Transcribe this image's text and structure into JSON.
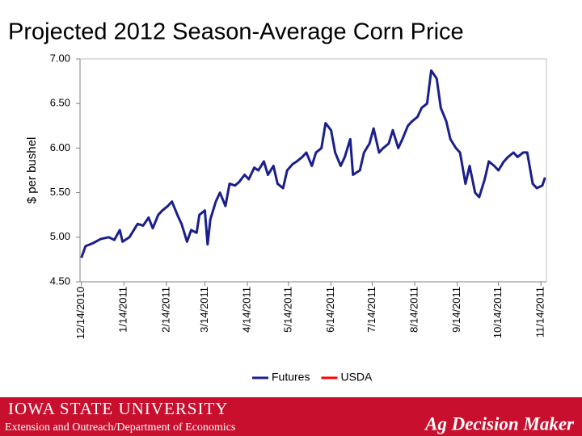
{
  "chart_data": {
    "type": "line",
    "title": "Projected 2012 Season-Average Corn Price",
    "y_label": "$ per bushel",
    "ylim": [
      4.5,
      7.0
    ],
    "yticks": [
      {
        "value": 4.5,
        "label": "4.50"
      },
      {
        "value": 5.0,
        "label": "5.00"
      },
      {
        "value": 5.5,
        "label": "5.50"
      },
      {
        "value": 6.0,
        "label": "6.00"
      },
      {
        "value": 6.5,
        "label": "6.50"
      },
      {
        "value": 7.0,
        "label": "7.00"
      }
    ],
    "xlim": [
      "2010-12-13",
      "2011-11-18"
    ],
    "xticks": [
      {
        "value": "2010-12-14",
        "label": "12/14/2010"
      },
      {
        "value": "2011-01-14",
        "label": "1/14/2011"
      },
      {
        "value": "2011-02-14",
        "label": "2/14/2011"
      },
      {
        "value": "2011-03-14",
        "label": "3/14/2011"
      },
      {
        "value": "2011-04-14",
        "label": "4/14/2011"
      },
      {
        "value": "2011-05-14",
        "label": "5/14/2011"
      },
      {
        "value": "2011-06-14",
        "label": "6/14/2011"
      },
      {
        "value": "2011-07-14",
        "label": "7/14/2011"
      },
      {
        "value": "2011-08-14",
        "label": "8/14/2011"
      },
      {
        "value": "2011-09-14",
        "label": "9/14/2011"
      },
      {
        "value": "2011-10-14",
        "label": "10/14/2011"
      },
      {
        "value": "2011-11-14",
        "label": "11/14/2011"
      }
    ],
    "x": [
      "2010-12-14",
      "2010-12-17",
      "2010-12-22",
      "2010-12-28",
      "2011-01-03",
      "2011-01-07",
      "2011-01-11",
      "2011-01-13",
      "2011-01-18",
      "2011-01-24",
      "2011-01-28",
      "2011-02-01",
      "2011-02-04",
      "2011-02-08",
      "2011-02-11",
      "2011-02-15",
      "2011-02-18",
      "2011-02-22",
      "2011-02-25",
      "2011-03-01",
      "2011-03-04",
      "2011-03-08",
      "2011-03-10",
      "2011-03-14",
      "2011-03-16",
      "2011-03-18",
      "2011-03-22",
      "2011-03-25",
      "2011-03-29",
      "2011-04-01",
      "2011-04-05",
      "2011-04-08",
      "2011-04-12",
      "2011-04-15",
      "2011-04-19",
      "2011-04-22",
      "2011-04-26",
      "2011-04-29",
      "2011-05-03",
      "2011-05-06",
      "2011-05-10",
      "2011-05-13",
      "2011-05-17",
      "2011-05-20",
      "2011-05-24",
      "2011-05-27",
      "2011-05-31",
      "2011-06-03",
      "2011-06-07",
      "2011-06-10",
      "2011-06-14",
      "2011-06-17",
      "2011-06-21",
      "2011-06-24",
      "2011-06-28",
      "2011-06-30",
      "2011-07-05",
      "2011-07-08",
      "2011-07-12",
      "2011-07-15",
      "2011-07-19",
      "2011-07-22",
      "2011-07-26",
      "2011-07-29",
      "2011-08-02",
      "2011-08-05",
      "2011-08-09",
      "2011-08-12",
      "2011-08-16",
      "2011-08-19",
      "2011-08-23",
      "2011-08-26",
      "2011-08-30",
      "2011-09-02",
      "2011-09-06",
      "2011-09-09",
      "2011-09-13",
      "2011-09-16",
      "2011-09-20",
      "2011-09-23",
      "2011-09-27",
      "2011-09-30",
      "2011-10-04",
      "2011-10-07",
      "2011-10-11",
      "2011-10-14",
      "2011-10-18",
      "2011-10-21",
      "2011-10-25",
      "2011-10-28",
      "2011-11-01",
      "2011-11-04",
      "2011-11-08",
      "2011-11-11",
      "2011-11-15",
      "2011-11-17"
    ],
    "series": [
      {
        "name": "Futures",
        "color": "#1a1f8c",
        "values": [
          4.77,
          4.9,
          4.93,
          4.98,
          5.0,
          4.97,
          5.08,
          4.95,
          5.0,
          5.15,
          5.13,
          5.22,
          5.1,
          5.25,
          5.3,
          5.35,
          5.4,
          5.25,
          5.15,
          4.95,
          5.08,
          5.05,
          5.25,
          5.3,
          4.92,
          5.2,
          5.4,
          5.5,
          5.35,
          5.6,
          5.58,
          5.62,
          5.7,
          5.65,
          5.78,
          5.75,
          5.85,
          5.7,
          5.8,
          5.6,
          5.55,
          5.75,
          5.82,
          5.85,
          5.9,
          5.95,
          5.8,
          5.95,
          6.0,
          6.28,
          6.2,
          5.95,
          5.8,
          5.9,
          6.1,
          5.7,
          5.75,
          5.95,
          6.05,
          6.22,
          5.95,
          6.0,
          6.05,
          6.2,
          6.0,
          6.1,
          6.25,
          6.3,
          6.35,
          6.45,
          6.5,
          6.87,
          6.78,
          6.45,
          6.3,
          6.1,
          6.0,
          5.95,
          5.6,
          5.8,
          5.5,
          5.45,
          5.65,
          5.85,
          5.8,
          5.75,
          5.85,
          5.9,
          5.95,
          5.9,
          5.95,
          5.95,
          5.6,
          5.55,
          5.58,
          5.67
        ]
      },
      {
        "name": "USDA",
        "color": "#ff0000"
      }
    ],
    "legend": "bottom"
  },
  "footer": {
    "university": "IOWA STATE UNIVERSITY",
    "department": "Extension and Outreach/Department of Economics",
    "brand": "Ag Decision Maker"
  }
}
